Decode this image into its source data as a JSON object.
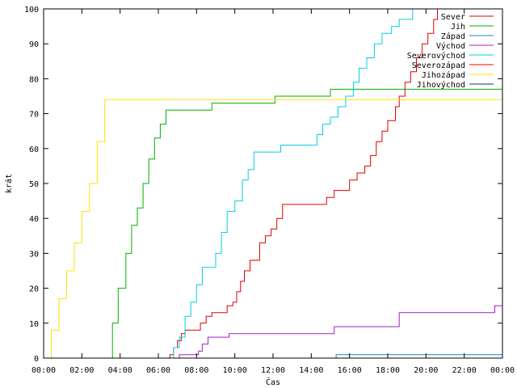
{
  "chart_data": {
    "type": "line",
    "xlabel": "Čas",
    "ylabel": "krát",
    "ylim": [
      0,
      100
    ],
    "xlim": [
      0,
      24
    ],
    "grid": false,
    "legend_position": "top-right",
    "x_ticks": [
      "00:00",
      "02:00",
      "04:00",
      "06:00",
      "08:00",
      "10:00",
      "12:00",
      "14:00",
      "16:00",
      "18:00",
      "20:00",
      "22:00",
      "00:00"
    ],
    "y_ticks": [
      0,
      10,
      20,
      30,
      40,
      50,
      60,
      70,
      80,
      90,
      100
    ],
    "series": [
      {
        "name": "Sever",
        "color": "#dd0000",
        "points": [
          [
            0,
            0
          ],
          [
            6.5,
            0
          ],
          [
            6.6,
            1
          ],
          [
            6.8,
            3
          ],
          [
            7,
            5
          ],
          [
            7.2,
            7
          ],
          [
            7.4,
            8
          ],
          [
            8,
            8
          ],
          [
            8.2,
            10
          ],
          [
            8.5,
            12
          ],
          [
            8.8,
            13
          ],
          [
            9.5,
            13
          ],
          [
            9.6,
            15
          ],
          [
            9.9,
            16
          ],
          [
            10.1,
            19
          ],
          [
            10.3,
            22
          ],
          [
            10.5,
            25
          ],
          [
            10.8,
            28
          ],
          [
            11.1,
            28
          ],
          [
            11.3,
            33
          ],
          [
            11.6,
            35
          ],
          [
            11.9,
            37
          ],
          [
            12.2,
            40
          ],
          [
            12.5,
            44
          ],
          [
            14.5,
            44
          ],
          [
            14.8,
            46
          ],
          [
            15.2,
            48
          ],
          [
            15.9,
            48
          ],
          [
            16,
            51
          ],
          [
            16.4,
            53
          ],
          [
            16.8,
            55
          ],
          [
            17.1,
            58
          ],
          [
            17.4,
            62
          ],
          [
            17.7,
            65
          ],
          [
            18,
            68
          ],
          [
            18.4,
            72
          ],
          [
            18.6,
            75
          ],
          [
            18.9,
            79
          ],
          [
            19.2,
            82
          ],
          [
            19.5,
            86
          ],
          [
            19.8,
            90
          ],
          [
            20.1,
            93
          ],
          [
            20.4,
            97
          ],
          [
            20.6,
            100
          ]
        ]
      },
      {
        "name": "Jih",
        "color": "#00b000",
        "points": [
          [
            0,
            0
          ],
          [
            3.3,
            0
          ],
          [
            3.6,
            10
          ],
          [
            3.9,
            20
          ],
          [
            4.3,
            30
          ],
          [
            4.6,
            38
          ],
          [
            4.9,
            43
          ],
          [
            5.2,
            50
          ],
          [
            5.5,
            57
          ],
          [
            5.8,
            63
          ],
          [
            6.1,
            67
          ],
          [
            6.4,
            71
          ],
          [
            8.7,
            71
          ],
          [
            8.8,
            73
          ],
          [
            12,
            73
          ],
          [
            12.1,
            75
          ],
          [
            14.9,
            75
          ],
          [
            15,
            77
          ],
          [
            24,
            77
          ]
        ]
      },
      {
        "name": "Západ",
        "color": "#2080c0",
        "points": [
          [
            0,
            0
          ],
          [
            15.2,
            0
          ],
          [
            15.3,
            1
          ],
          [
            24,
            1
          ]
        ]
      },
      {
        "name": "Východ",
        "color": "#a020c0",
        "points": [
          [
            0,
            0
          ],
          [
            7,
            0
          ],
          [
            7.1,
            1
          ],
          [
            8,
            1
          ],
          [
            8.1,
            2
          ],
          [
            8.3,
            4
          ],
          [
            8.6,
            6
          ],
          [
            9.6,
            6
          ],
          [
            9.7,
            7
          ],
          [
            15.1,
            7
          ],
          [
            15.2,
            9
          ],
          [
            18.5,
            9
          ],
          [
            18.6,
            13
          ],
          [
            23.5,
            13
          ],
          [
            23.6,
            15
          ],
          [
            24,
            15
          ]
        ]
      },
      {
        "name": "Severovýchod",
        "color": "#00d0e0",
        "points": [
          [
            0,
            0
          ],
          [
            6.6,
            0
          ],
          [
            6.8,
            3
          ],
          [
            7.1,
            6
          ],
          [
            7.4,
            12
          ],
          [
            7.7,
            16
          ],
          [
            8,
            21
          ],
          [
            8.3,
            26
          ],
          [
            8.8,
            26
          ],
          [
            9,
            30
          ],
          [
            9.3,
            36
          ],
          [
            9.6,
            42
          ],
          [
            10,
            45
          ],
          [
            10.4,
            51
          ],
          [
            10.7,
            54
          ],
          [
            11,
            59
          ],
          [
            12.3,
            59
          ],
          [
            12.4,
            61
          ],
          [
            14.1,
            61
          ],
          [
            14.3,
            64
          ],
          [
            14.6,
            67
          ],
          [
            15,
            69
          ],
          [
            15.4,
            72
          ],
          [
            15.8,
            75
          ],
          [
            16.2,
            79
          ],
          [
            16.5,
            83
          ],
          [
            16.9,
            86
          ],
          [
            17.3,
            90
          ],
          [
            17.7,
            93
          ],
          [
            18.2,
            95
          ],
          [
            18.6,
            97
          ],
          [
            19.3,
            100
          ]
        ]
      },
      {
        "name": "Severozápad",
        "color": "#ff0000",
        "points": []
      },
      {
        "name": "Jihozápad",
        "color": "#ffe000",
        "points": [
          [
            0,
            0
          ],
          [
            0.4,
            8
          ],
          [
            0.8,
            17
          ],
          [
            1.2,
            25
          ],
          [
            1.6,
            33
          ],
          [
            2,
            42
          ],
          [
            2.4,
            50
          ],
          [
            2.8,
            62
          ],
          [
            3.2,
            74
          ],
          [
            24,
            74
          ]
        ]
      },
      {
        "name": "Jihovýchod",
        "color": "#103070",
        "points": [
          [
            0,
            0
          ],
          [
            24,
            0
          ]
        ]
      }
    ]
  }
}
